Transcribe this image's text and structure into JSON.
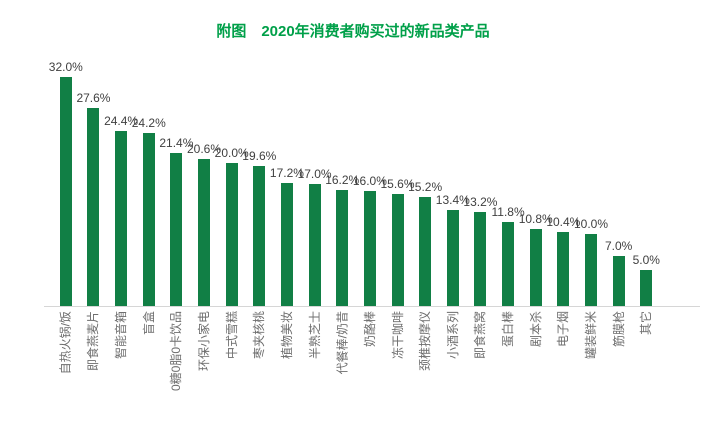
{
  "title": {
    "text": "附图　2020年消费者购买过的新品类产品",
    "color": "#00a049"
  },
  "chart_data": {
    "type": "bar",
    "title": "附图　2020年消费者购买过的新品类产品",
    "categories": [
      "自热火锅/饭",
      "即食燕麦片",
      "智能音箱",
      "盲盒",
      "0糖0脂0卡饮品",
      "环保小家电",
      "中式雪糕",
      "枣夹核桃",
      "植物美妆",
      "半熟芝士",
      "代餐棒/奶昔",
      "奶酪棒",
      "冻干咖啡",
      "颈椎按摩仪",
      "小酒系列",
      "即食燕窝",
      "蛋白棒",
      "剧本杀",
      "电子烟",
      "罐装鲜米",
      "筋膜枪",
      "其它"
    ],
    "values": [
      32.0,
      27.6,
      24.4,
      24.2,
      21.4,
      20.6,
      20.0,
      19.6,
      17.2,
      17.0,
      16.2,
      16.0,
      15.6,
      15.2,
      13.4,
      13.2,
      11.8,
      10.8,
      10.4,
      10.0,
      7.0,
      5.0
    ],
    "value_labels": [
      "32.0%",
      "27.6%",
      "24.4%",
      "24.2%",
      "21.4%",
      "20.6%",
      "20.0%",
      "19.6%",
      "17.2%",
      "17.0%",
      "16.2%",
      "16.0%",
      "15.6%",
      "15.2%",
      "13.4%",
      "13.2%",
      "11.8%",
      "10.8%",
      "10.4%",
      "10.0%",
      "7.0%",
      "5.0%"
    ],
    "xlabel": "",
    "ylabel": "",
    "unit": "%",
    "ylim": [
      0,
      35
    ],
    "grid": false,
    "legend": "none",
    "value_label_position": "above-bar",
    "category_label_rotation": -90,
    "bar_color": "#117f45",
    "value_label_color": "#404040",
    "category_label_color": "#6e6e6e",
    "axis_line_color": "#d6d6d6",
    "title_color": "#00a049",
    "background_color": "#ffffff"
  }
}
